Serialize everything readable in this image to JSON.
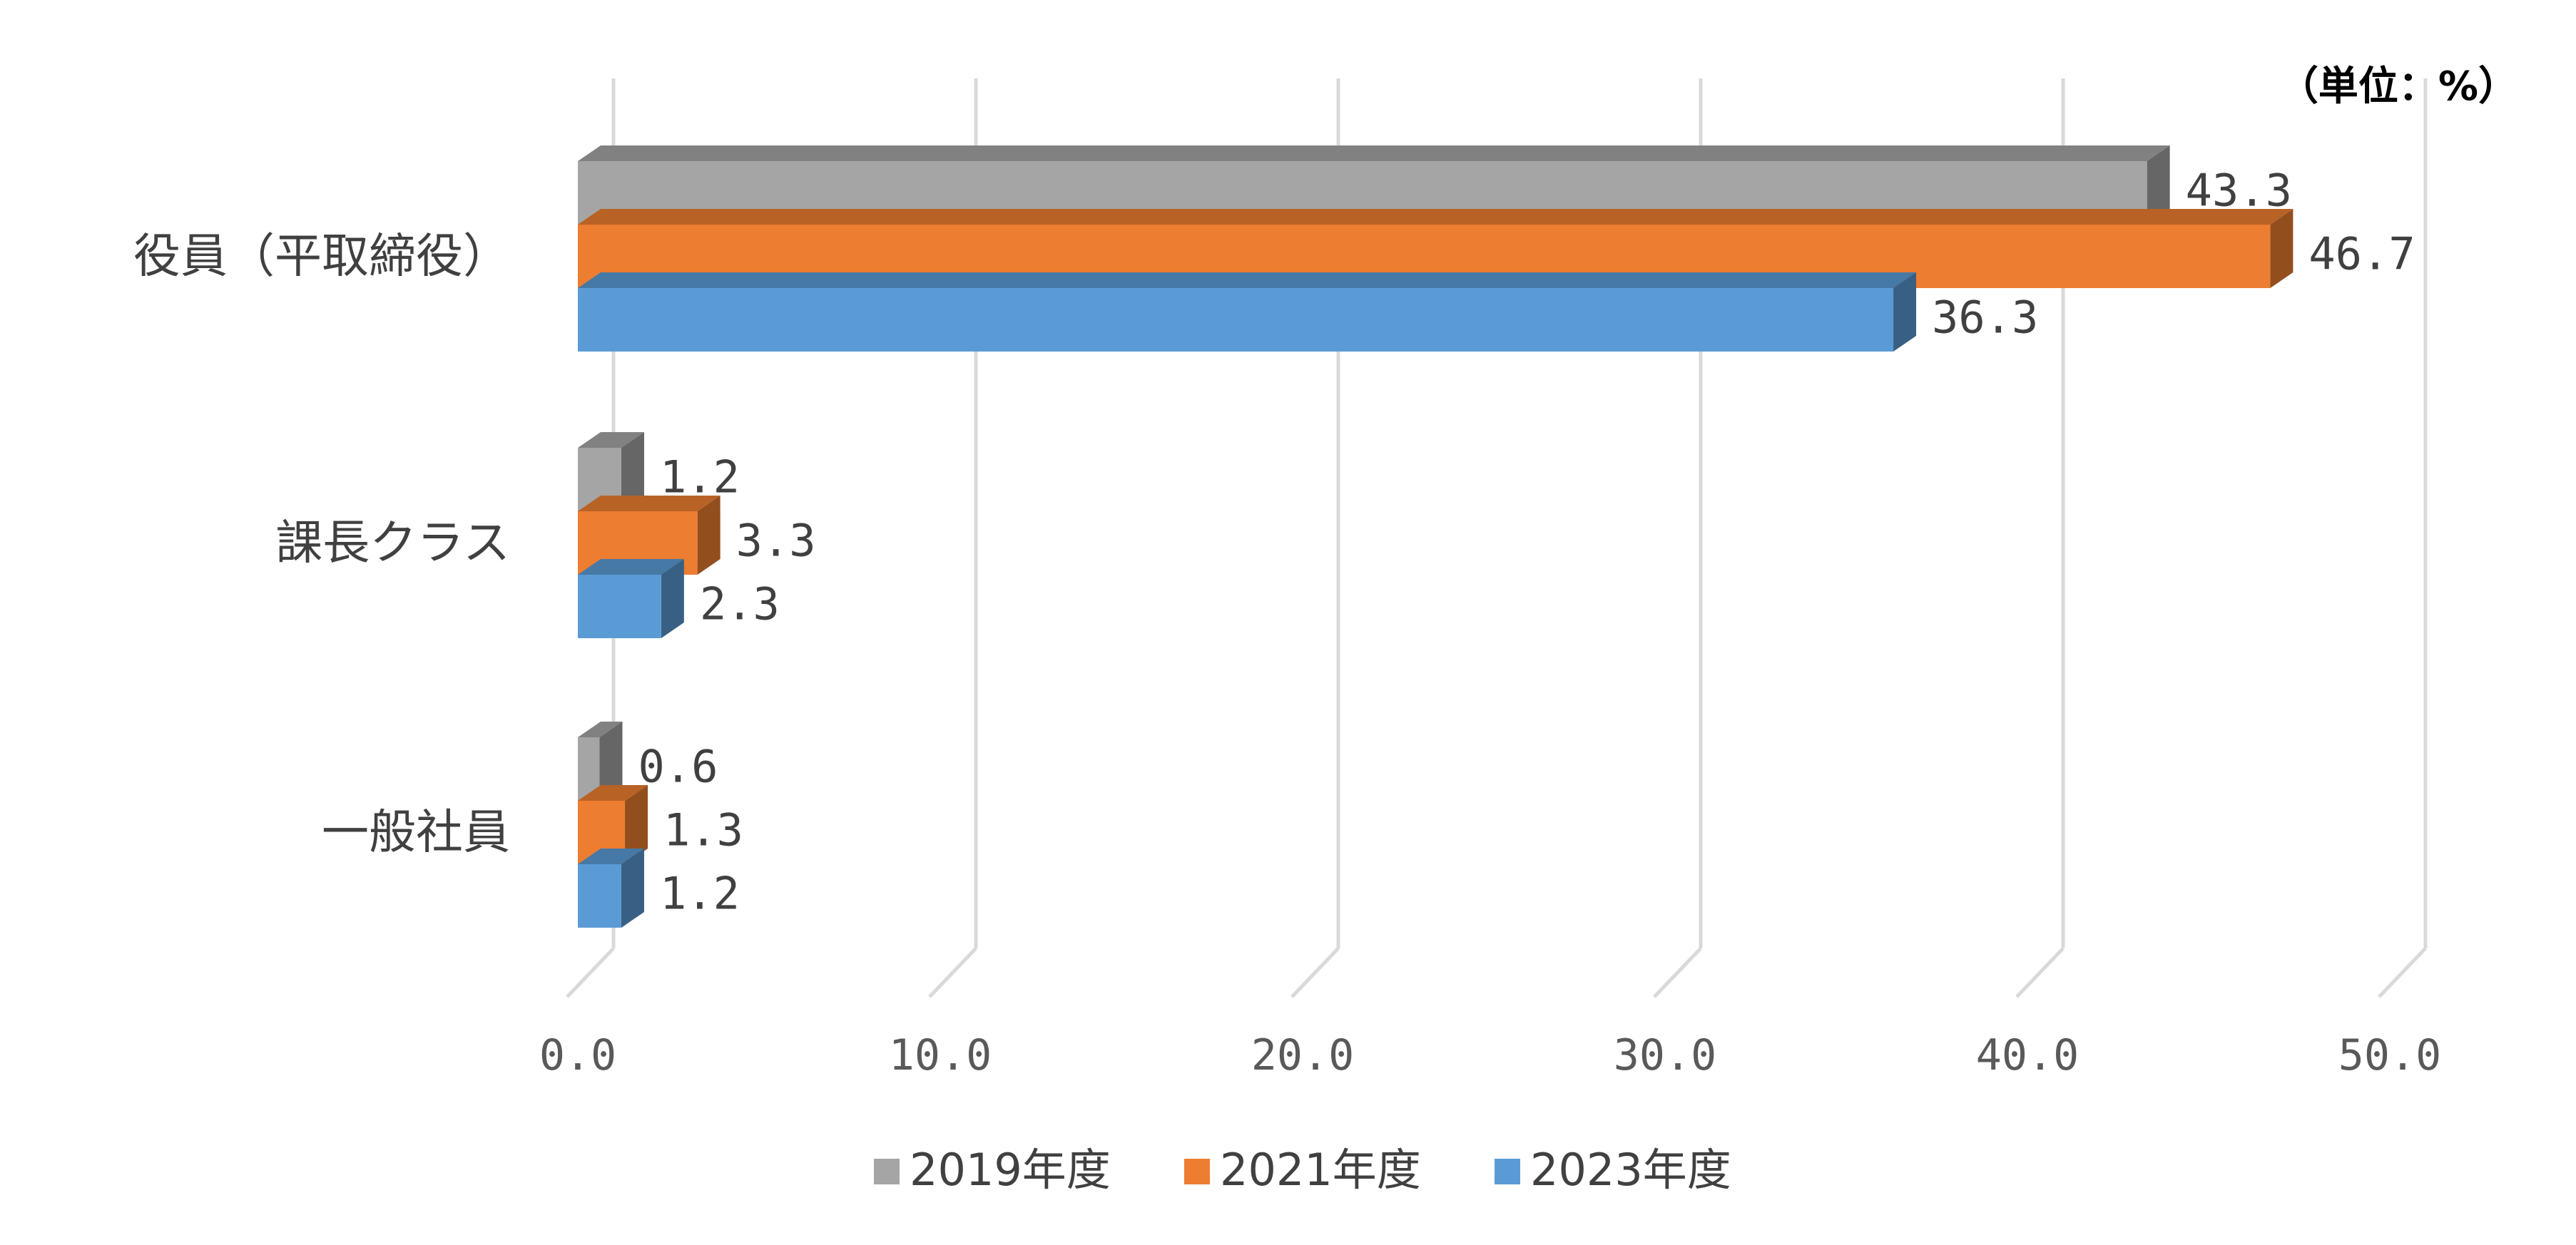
{
  "chart_data": {
    "type": "bar",
    "orientation": "horizontal",
    "style": "3d-clustered",
    "unit_label": "（単位：%）",
    "categories": [
      "役員（平取締役）",
      "課長クラス",
      "一般社員"
    ],
    "series": [
      {
        "name": "2019年度",
        "color": "#A5A5A5",
        "values": [
          43.3,
          1.2,
          0.6
        ]
      },
      {
        "name": "2021年度",
        "color": "#ED7D31",
        "values": [
          46.7,
          3.3,
          1.3
        ]
      },
      {
        "name": "2023年度",
        "color": "#5B9BD5",
        "values": [
          36.3,
          2.3,
          1.2
        ]
      }
    ],
    "value_labels": [
      [
        "43.3",
        "1.2",
        "0.6"
      ],
      [
        "46.7",
        "3.3",
        "1.3"
      ],
      [
        "36.3",
        "2.3",
        "1.2"
      ]
    ],
    "x_ticks": [
      "0.0",
      "10.0",
      "20.0",
      "30.0",
      "40.0",
      "50.0"
    ],
    "xlim": [
      0,
      50
    ],
    "grid": true,
    "legend_position": "bottom"
  }
}
